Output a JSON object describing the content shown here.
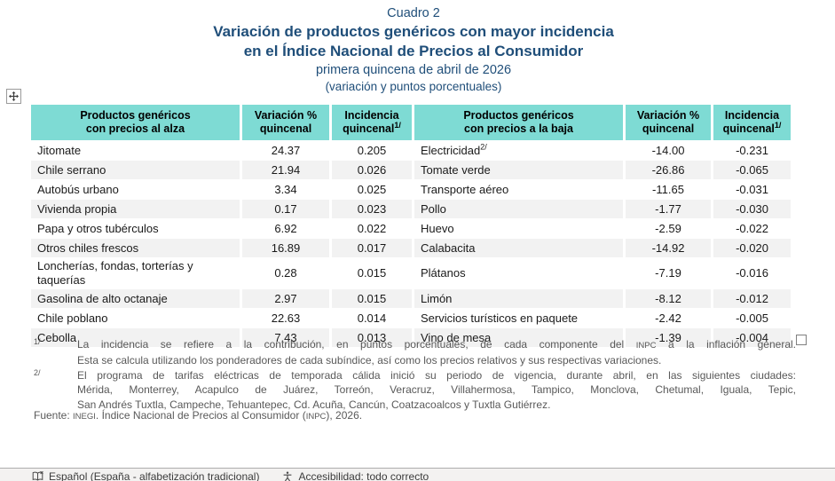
{
  "title": {
    "cuadro": "Cuadro 2",
    "line1": "Variación de productos genéricos con mayor incidencia",
    "line2": "en el Índice Nacional de Precios al Consumidor",
    "subtitle": "primera quincena de abril de 2026",
    "units": "(variación y puntos porcentuales)"
  },
  "table": {
    "headers": {
      "alza_product": "Productos genéricos\ncon precios al alza",
      "alza_variation": "Variación %\nquincenal",
      "alza_incidence": "Incidencia\nquincenal",
      "alza_incidence_sup": "1/",
      "baja_product": "Productos genéricos\ncon precios a la baja",
      "baja_variation": "Variación %\nquincenal",
      "baja_incidence": "Incidencia\nquincenal",
      "baja_incidence_sup": "1/"
    },
    "rows": [
      {
        "alza": {
          "product": "Jitomate",
          "variation": "24.37",
          "incidence": "0.205"
        },
        "baja": {
          "product": "Electricidad",
          "product_sup": "2/",
          "variation": "-14.00",
          "incidence": "-0.231"
        }
      },
      {
        "alza": {
          "product": "Chile serrano",
          "variation": "21.94",
          "incidence": "0.026"
        },
        "baja": {
          "product": "Tomate verde",
          "variation": "-26.86",
          "incidence": "-0.065"
        }
      },
      {
        "alza": {
          "product": "Autobús urbano",
          "variation": "3.34",
          "incidence": "0.025"
        },
        "baja": {
          "product": "Transporte aéreo",
          "variation": "-11.65",
          "incidence": "-0.031"
        }
      },
      {
        "alza": {
          "product": "Vivienda propia",
          "variation": "0.17",
          "incidence": "0.023"
        },
        "baja": {
          "product": "Pollo",
          "variation": "-1.77",
          "incidence": "-0.030"
        }
      },
      {
        "alza": {
          "product": "Papa y otros tubérculos",
          "variation": "6.92",
          "incidence": "0.022"
        },
        "baja": {
          "product": "Huevo",
          "variation": "-2.59",
          "incidence": "-0.022"
        }
      },
      {
        "alza": {
          "product": "Otros chiles frescos",
          "variation": "16.89",
          "incidence": "0.017"
        },
        "baja": {
          "product": "Calabacita",
          "variation": "-14.92",
          "incidence": "-0.020"
        }
      },
      {
        "alza": {
          "product": "Loncherías, fondas, torterías y taquerías",
          "variation": "0.28",
          "incidence": "0.015"
        },
        "baja": {
          "product": "Plátanos",
          "variation": "-7.19",
          "incidence": "-0.016"
        }
      },
      {
        "alza": {
          "product": "Gasolina de alto octanaje",
          "variation": "2.97",
          "incidence": "0.015"
        },
        "baja": {
          "product": "Limón",
          "variation": "-8.12",
          "incidence": "-0.012"
        }
      },
      {
        "alza": {
          "product": "Chile poblano",
          "variation": "22.63",
          "incidence": "0.014"
        },
        "baja": {
          "product": "Servicios turísticos en paquete",
          "variation": "-2.42",
          "incidence": "-0.005"
        }
      },
      {
        "alza": {
          "product": "Cebolla",
          "variation": "7.43",
          "incidence": "0.013"
        },
        "baja": {
          "product": "Vino de mesa",
          "variation": "-1.39",
          "incidence": "-0.004"
        }
      }
    ]
  },
  "footnotes": [
    {
      "marker": "1/",
      "lines": [
        {
          "text": "La incidencia se refiere a la contribución, en puntos porcentuales, de cada componente del INPC a la inflación general.",
          "justify": true
        },
        {
          "text": "Esta se calcula utilizando los ponderadores de cada subíndice, así como los precios relativos y sus respectivas variaciones.",
          "justify": false
        }
      ]
    },
    {
      "marker": "2/",
      "lines": [
        {
          "text": "El programa de tarifas eléctricas de temporada cálida inició su periodo de vigencia, durante abril, en las siguientes ciudades:",
          "justify": true
        },
        {
          "text": "Mérida, Monterrey, Acapulco de Juárez, Torreón, Veracruz, Villahermosa, Tampico, Monclova, Chetumal, Iguala, Tepic,",
          "justify": true
        },
        {
          "text": "San Andrés Tuxtla, Campeche, Tehuantepec, Cd. Acuña, Cancún, Coatzacoalcos y Tuxtla Gutiérrez.",
          "justify": false
        }
      ]
    }
  ],
  "source": {
    "text": "Fuente: INEGI. Índice Nacional de Precios al Consumidor (INPC), 2026."
  },
  "smallcaps_words": [
    "INEGI",
    "INPC"
  ],
  "status_bar": {
    "language": "Español (España - alfabetización tradicional)",
    "accessibility": "Accesibilidad: todo correcto"
  },
  "icons": {
    "move_handle": "move-cross-icon",
    "resize_handle": "resize-square-icon",
    "proofing": "book-x-icon",
    "accessibility": "accessibility-person-icon"
  },
  "colors": {
    "header_teal": "#7EDBD4",
    "title_navy": "#1F4E79",
    "stripe": "#F2F2F2",
    "footnote_gray": "#595959",
    "status_bg": "#F3F2F1",
    "status_border": "#ADADAD"
  }
}
